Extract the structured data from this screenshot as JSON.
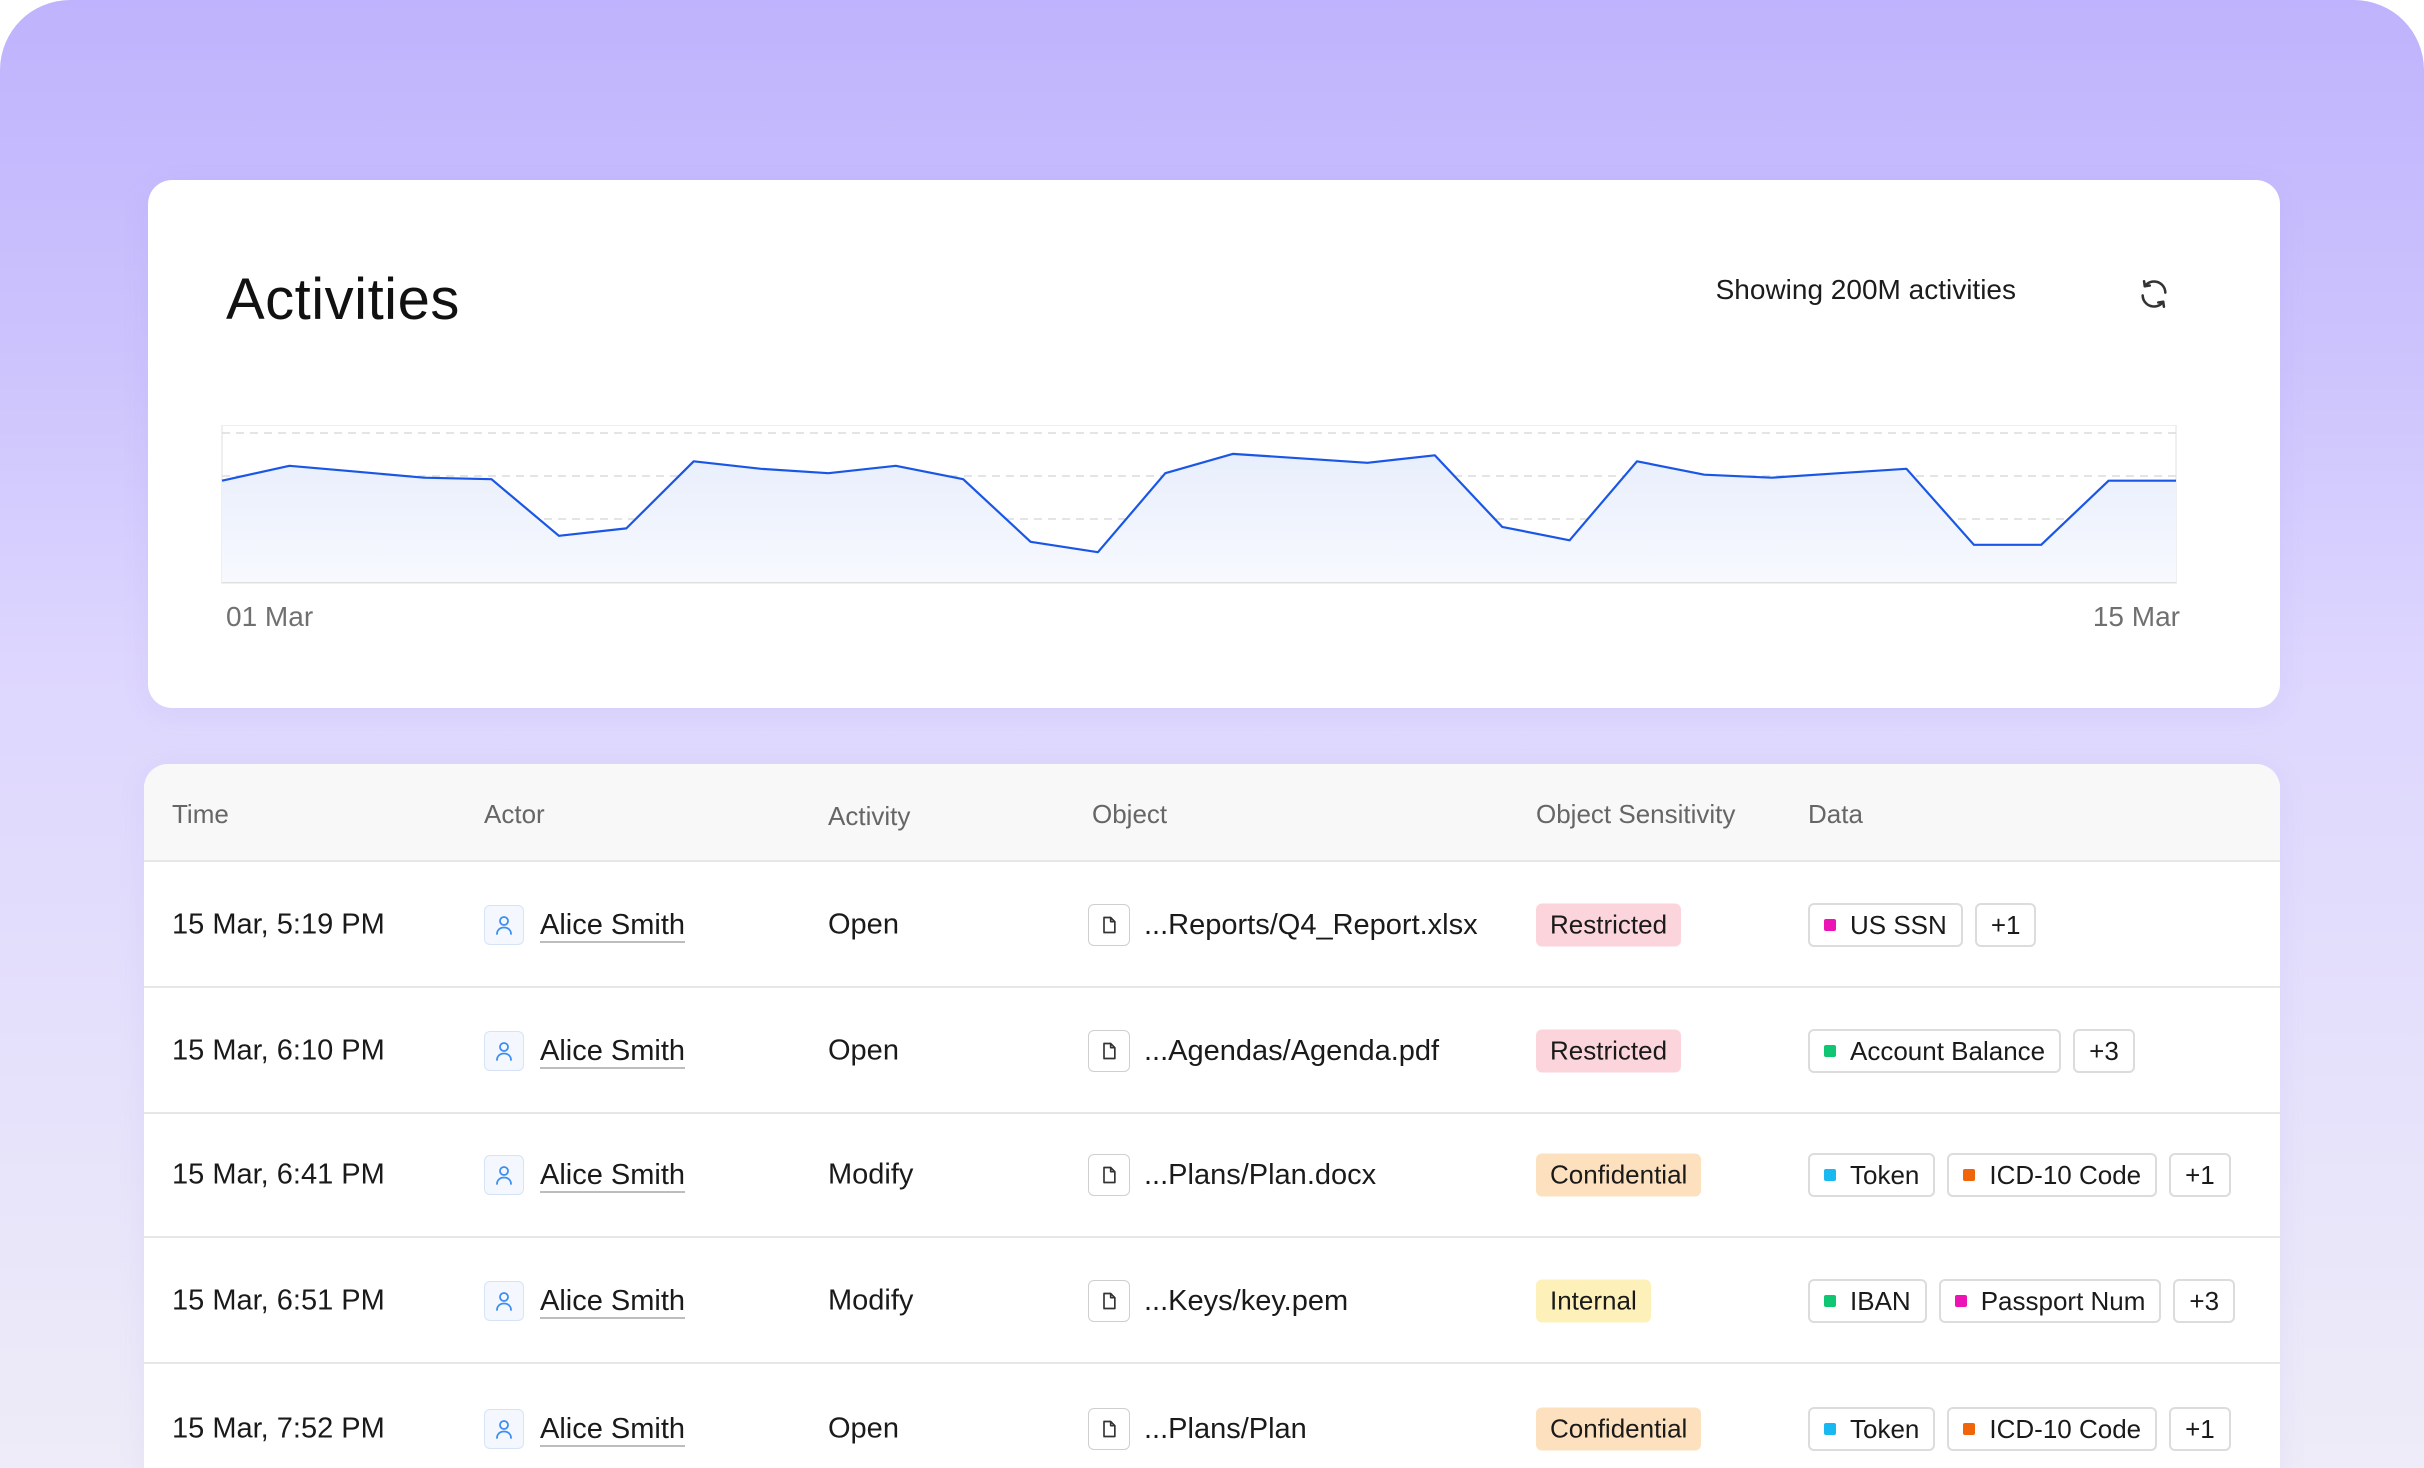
{
  "header": {
    "title": "Activities",
    "showing_text": "Showing 200M activities",
    "refresh_icon": "refresh-icon"
  },
  "chart_data": {
    "type": "area",
    "x_start_label": "01 Mar",
    "x_end_label": "15 Mar",
    "ylim": [
      0,
      100
    ],
    "grid": true,
    "line_color": "#1a56e6",
    "values": [
      68,
      78,
      74,
      70,
      69,
      31,
      36,
      81,
      76,
      73,
      78,
      69,
      27,
      20,
      73,
      86,
      83,
      80,
      85,
      37,
      28,
      81,
      72,
      70,
      73,
      76,
      25,
      25,
      68,
      68
    ]
  },
  "table": {
    "columns": [
      "Time",
      "Actor",
      "Activity",
      "Object",
      "Object Sensitivity",
      "Data"
    ],
    "rows": [
      {
        "time": "15 Mar, 5:19 PM",
        "actor": "Alice Smith",
        "activity": "Open",
        "object": "...Reports/Q4_Report.xlsx",
        "sensitivity": "Restricted",
        "sens_bg": "#fcd5dc",
        "data": [
          {
            "label": "US SSN",
            "color": "#ec14b4"
          }
        ],
        "more": "+1"
      },
      {
        "time": "15 Mar, 6:10 PM",
        "actor": "Alice Smith",
        "activity": "Open",
        "object": "...Agendas/Agenda.pdf",
        "sensitivity": "Restricted",
        "sens_bg": "#fcd5dc",
        "data": [
          {
            "label": "Account Balance",
            "color": "#10c673"
          }
        ],
        "more": "+3"
      },
      {
        "time": "15 Mar, 6:41 PM",
        "actor": "Alice Smith",
        "activity": "Modify",
        "object": "...Plans/Plan.docx",
        "sensitivity": "Confidential",
        "sens_bg": "#fde0bd",
        "data": [
          {
            "label": "Token",
            "color": "#1ab8f0"
          },
          {
            "label": "ICD-10 Code",
            "color": "#f0640a"
          }
        ],
        "more": "+1"
      },
      {
        "time": "15 Mar, 6:51 PM",
        "actor": "Alice Smith",
        "activity": "Modify",
        "object": "...Keys/key.pem",
        "sensitivity": "Internal",
        "sens_bg": "#fdf0b8",
        "data": [
          {
            "label": "IBAN",
            "color": "#10c673"
          },
          {
            "label": "Passport Num",
            "color": "#ec14b4"
          }
        ],
        "more": "+3"
      },
      {
        "time": "15 Mar, 7:52 PM",
        "actor": "Alice Smith",
        "activity": "Open",
        "object": "...Plans/Plan",
        "sensitivity": "Confidential",
        "sens_bg": "#fde0bd",
        "data": [
          {
            "label": "Token",
            "color": "#1ab8f0"
          },
          {
            "label": "ICD-10 Code",
            "color": "#f0640a"
          }
        ],
        "more": "+1"
      }
    ]
  }
}
